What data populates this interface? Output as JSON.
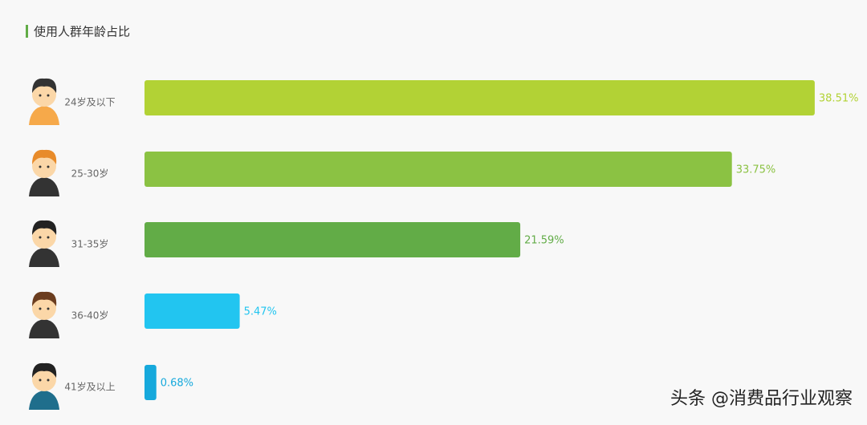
{
  "chart_data": {
    "type": "bar",
    "orientation": "horizontal",
    "title": "使用人群年龄占比",
    "categories": [
      "24岁及以下",
      "25-30岁",
      "31-35岁",
      "36-40岁",
      "41岁及以上"
    ],
    "values": [
      38.51,
      33.75,
      21.59,
      5.47,
      0.68
    ],
    "value_labels": [
      "38.51%",
      "33.75%",
      "21.59%",
      "5.47%",
      "0.68%"
    ],
    "colors": [
      "#b2d235",
      "#8bc243",
      "#62ac47",
      "#22c5f0",
      "#16a9dc"
    ]
  },
  "watermark": "头条 @消费品行业观察"
}
